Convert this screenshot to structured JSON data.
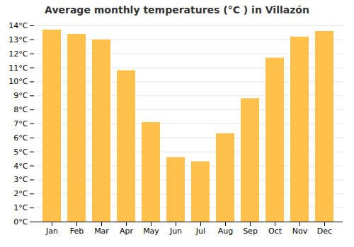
{
  "chart_data": {
    "type": "bar",
    "title": "Average monthly temperatures (°C ) in Villazón",
    "categories": [
      "Jan",
      "Feb",
      "Mar",
      "Apr",
      "May",
      "Jun",
      "Jul",
      "Aug",
      "Sep",
      "Oct",
      "Nov",
      "Dec"
    ],
    "values": [
      13.7,
      13.4,
      13.0,
      10.8,
      7.1,
      4.6,
      4.3,
      6.3,
      8.8,
      11.7,
      13.2,
      13.6
    ],
    "color": "#FFC04C",
    "ylim": [
      0,
      14
    ],
    "yticks": [
      {
        "value": 0,
        "label": "0°C"
      },
      {
        "value": 1,
        "label": "1°C"
      },
      {
        "value": 2,
        "label": "2°C"
      },
      {
        "value": 3,
        "label": "3°C"
      },
      {
        "value": 4,
        "label": "4°C"
      },
      {
        "value": 5,
        "label": "5°C"
      },
      {
        "value": 6,
        "label": "6°C"
      },
      {
        "value": 7,
        "label": "7°C"
      },
      {
        "value": 8,
        "label": "8°C"
      },
      {
        "value": 9,
        "label": "9°C"
      },
      {
        "value": 10,
        "label": "10°C"
      },
      {
        "value": 11,
        "label": "11°C"
      },
      {
        "value": 12,
        "label": "12°C"
      },
      {
        "value": 13,
        "label": "13°C"
      },
      {
        "value": 14,
        "label": "14°C"
      }
    ],
    "grid": true
  }
}
